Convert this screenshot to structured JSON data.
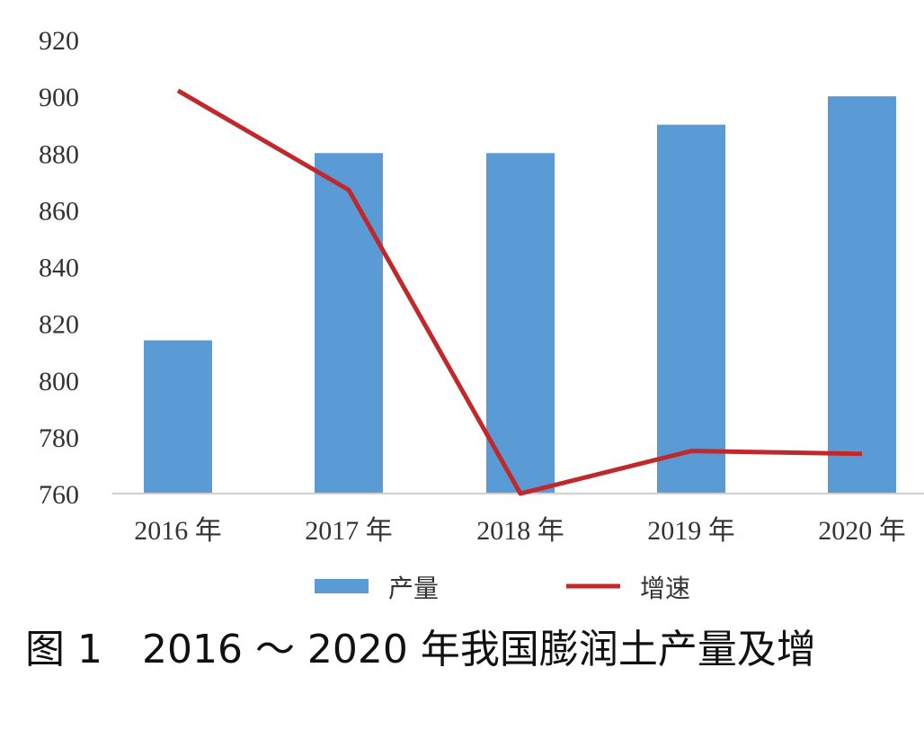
{
  "chart_data": {
    "type": "bar",
    "categories": [
      "2016 年",
      "2017 年",
      "2018 年",
      "2019 年",
      "2020 年"
    ],
    "series": [
      {
        "name": "产量",
        "type": "bar",
        "color": "#5B9BD5",
        "values": [
          814,
          880,
          880,
          890,
          900
        ]
      },
      {
        "name": "增速",
        "type": "line",
        "color": "#C0282C",
        "values": [
          902,
          867,
          760,
          775,
          774
        ]
      }
    ],
    "ylim": [
      760,
      920
    ],
    "yticks": [
      920,
      900,
      880,
      860,
      840,
      820,
      800,
      780,
      760
    ],
    "grid": false,
    "legend_position": "bottom"
  },
  "caption": "图 1　2016 ～ 2020 年我国膨润土产量及增"
}
